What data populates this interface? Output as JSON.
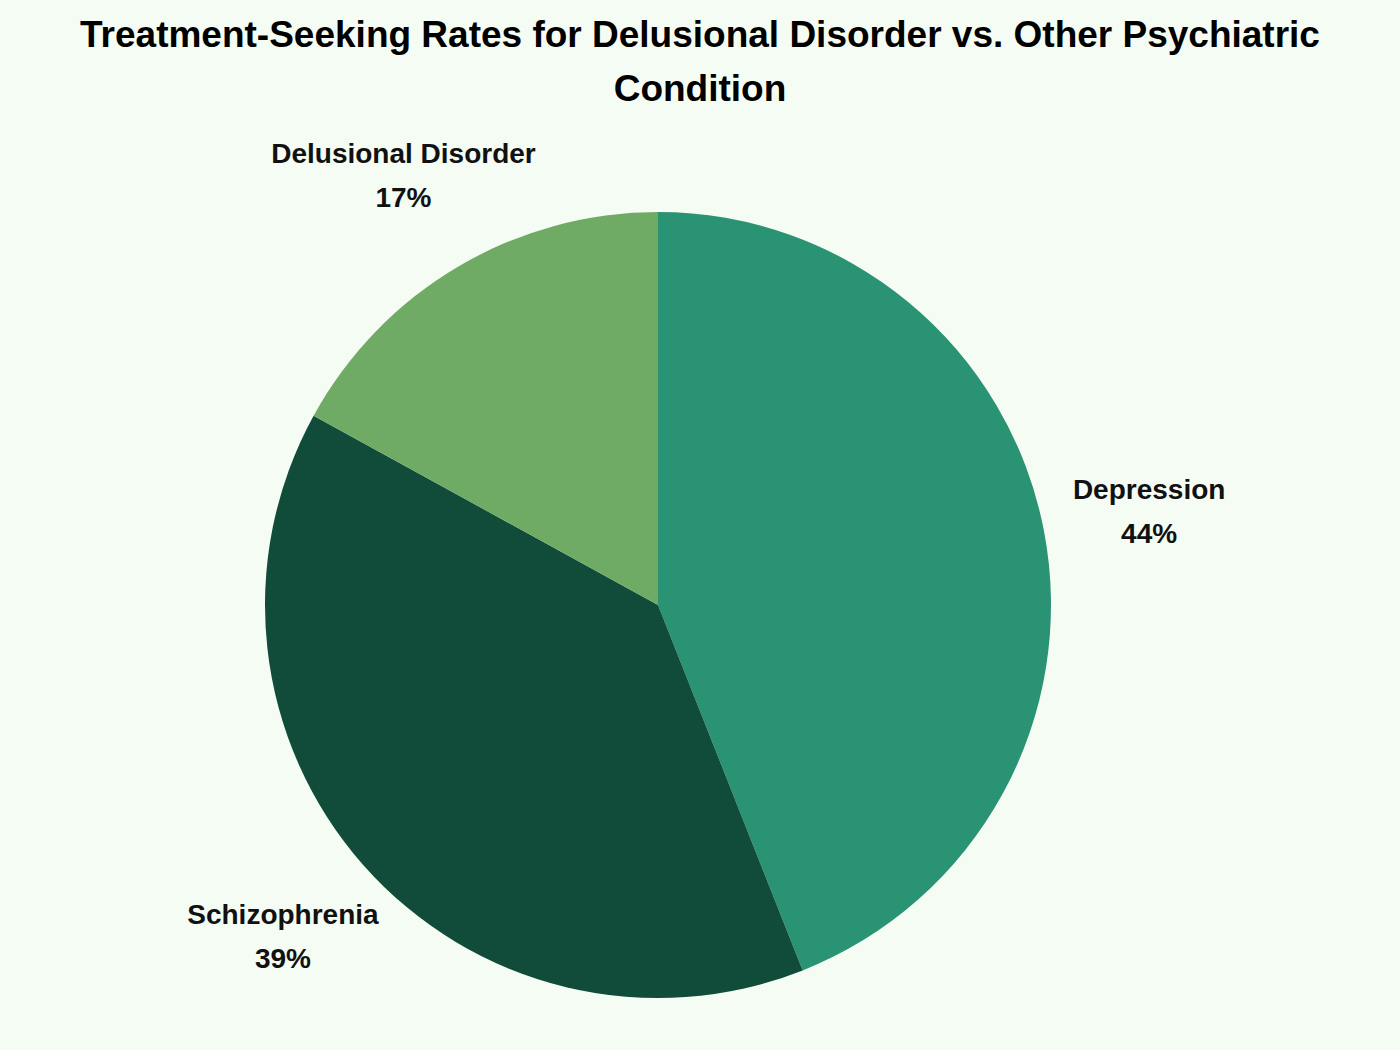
{
  "chart_data": {
    "type": "pie",
    "title": "Treatment-Seeking Rates for Delusional Disorder vs. Other Psychiatric Condition",
    "categories": [
      "Depression",
      "Schizophrenia",
      "Delusional Disorder"
    ],
    "values": [
      44,
      39,
      17
    ],
    "value_labels": [
      "44%",
      "39%",
      "17%"
    ],
    "colors": [
      "#2a9373",
      "#114b3a",
      "#6fab64"
    ],
    "data_labels": true
  }
}
